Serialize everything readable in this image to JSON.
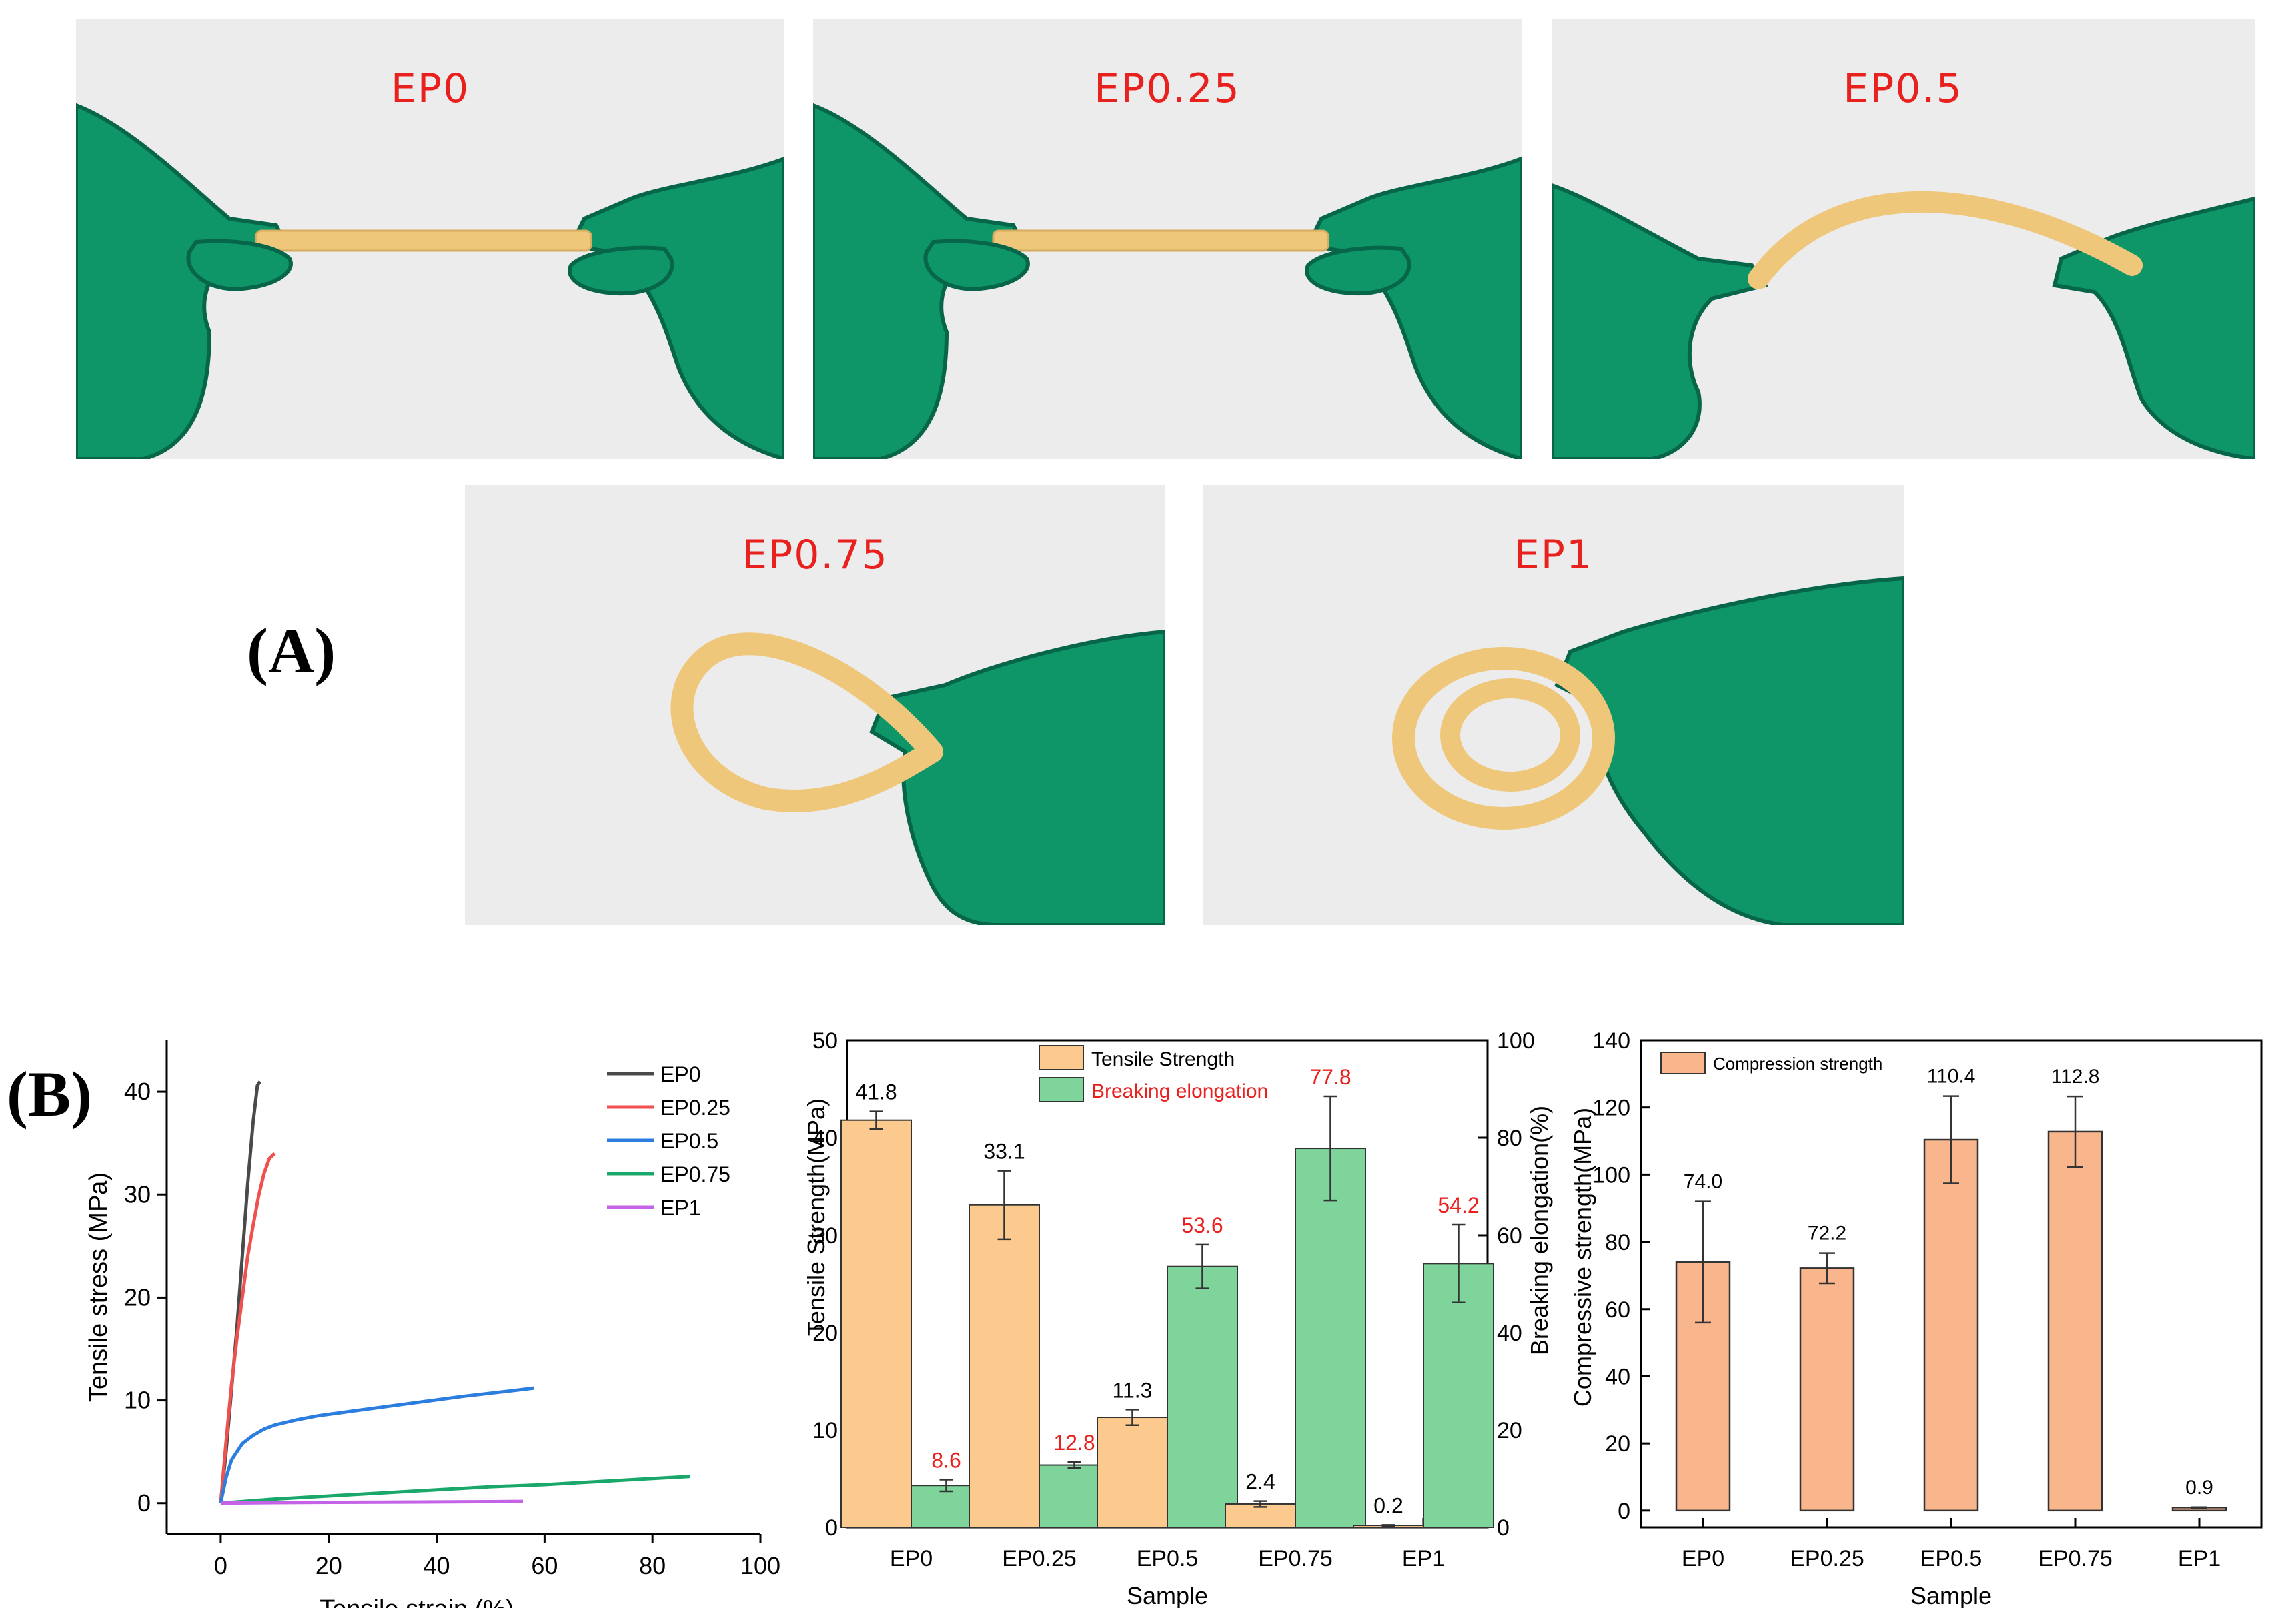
{
  "panel_a": {
    "letter": "(A)",
    "photos": [
      {
        "label": "EP0",
        "pose": "flat"
      },
      {
        "label": "EP0.25",
        "pose": "flat"
      },
      {
        "label": "EP0.5",
        "pose": "arch"
      },
      {
        "label": "EP0.75",
        "pose": "loop"
      },
      {
        "label": "EP1",
        "pose": "coil"
      }
    ]
  },
  "panel_b": {
    "letter": "(B)"
  },
  "colors": {
    "glove": "#0f9668",
    "glove_dark": "#07664a",
    "strip": "#efc77a",
    "background": "#ececec",
    "tensile_bar": "#fcca8e",
    "elong_bar": "#7ed49a",
    "compress_bar": "#f9b58c",
    "red_text": "#e8211e",
    "EP0": "#4a4a4a",
    "EP0.25": "#f0504e",
    "EP0.5": "#2c7de0",
    "EP0.75": "#1aa86a",
    "EP1": "#c563e6"
  },
  "chart_data": [
    {
      "type": "line",
      "xlabel": "Tensile strain (%)",
      "ylabel": "Tensile stress (MPa)",
      "xlim": [
        -10,
        100
      ],
      "ylim": [
        -3,
        45
      ],
      "xticks": [
        0,
        20,
        40,
        60,
        80,
        100
      ],
      "yticks": [
        0,
        10,
        20,
        30,
        40
      ],
      "legend": "top-right",
      "series": [
        {
          "name": "EP0",
          "color_key": "EP0",
          "x": [
            0,
            1,
            2,
            3,
            4,
            5,
            6,
            6.8,
            7.3
          ],
          "y": [
            0,
            5,
            11,
            17,
            24,
            31,
            37,
            40.6,
            41
          ]
        },
        {
          "name": "EP0.25",
          "color_key": "EP0.25",
          "x": [
            0,
            1,
            2,
            3,
            4,
            5,
            6,
            7,
            8,
            9,
            10
          ],
          "y": [
            0,
            6,
            11.5,
            16,
            20,
            24,
            27,
            29.8,
            32,
            33.5,
            34
          ]
        },
        {
          "name": "EP0.5",
          "color_key": "EP0.5",
          "x": [
            0,
            1,
            2,
            4,
            6,
            8,
            10,
            14,
            18,
            25,
            35,
            45,
            55,
            58
          ],
          "y": [
            0,
            2.5,
            4.2,
            5.8,
            6.6,
            7.2,
            7.6,
            8.1,
            8.5,
            9.0,
            9.7,
            10.4,
            11.0,
            11.2
          ]
        },
        {
          "name": "EP0.75",
          "color_key": "EP0.75",
          "x": [
            0,
            10,
            20,
            30,
            40,
            50,
            60,
            70,
            80,
            87
          ],
          "y": [
            0,
            0.4,
            0.7,
            1.0,
            1.3,
            1.6,
            1.8,
            2.1,
            2.4,
            2.6
          ]
        },
        {
          "name": "EP1",
          "color_key": "EP1",
          "x": [
            0,
            10,
            20,
            30,
            40,
            50,
            56
          ],
          "y": [
            0,
            0.05,
            0.08,
            0.1,
            0.12,
            0.15,
            0.17
          ]
        }
      ]
    },
    {
      "type": "bar",
      "categories": [
        "EP0",
        "EP0.25",
        "EP0.5",
        "EP0.75",
        "EP1"
      ],
      "xlabel": "Sample",
      "ylabel": "Tensile Strength(MPa)",
      "ylabel_right": "Breaking elongation(%)",
      "ylim": [
        0,
        50
      ],
      "ylim_right": [
        0,
        100
      ],
      "yticks": [
        0,
        10,
        20,
        30,
        40,
        50
      ],
      "yticks_right": [
        0,
        20,
        40,
        60,
        80,
        100
      ],
      "legend": "top-center",
      "series": [
        {
          "name": "Tensile Strength",
          "axis": "left",
          "color_key": "tensile_bar",
          "values": [
            41.8,
            33.1,
            11.3,
            2.4,
            0.2
          ],
          "errors": [
            0.9,
            3.5,
            0.8,
            0.3,
            0.05
          ],
          "labels": [
            "41.8",
            "33.1",
            "11.3",
            "2.4",
            "0.2"
          ]
        },
        {
          "name": "Breaking elongation",
          "axis": "right",
          "color_key": "elong_bar",
          "values": [
            8.6,
            12.8,
            53.6,
            77.8,
            54.2
          ],
          "errors": [
            1.2,
            0.6,
            4.5,
            10.7,
            8.0
          ],
          "labels": [
            "8.6",
            "12.8",
            "53.6",
            "77.8",
            "54.2"
          ]
        }
      ]
    },
    {
      "type": "bar",
      "categories": [
        "EP0",
        "EP0.25",
        "EP0.5",
        "EP0.75",
        "EP1"
      ],
      "xlabel": "Sample",
      "ylabel": "Compressive strength(MPa)",
      "ylim": [
        -5,
        140
      ],
      "yticks": [
        0,
        20,
        40,
        60,
        80,
        100,
        120,
        140
      ],
      "legend": "top-left",
      "series": [
        {
          "name": "Compression strength",
          "color_key": "compress_bar",
          "values": [
            74.0,
            72.2,
            110.4,
            112.8,
            0.9
          ],
          "errors": [
            18,
            4.5,
            13,
            10.5,
            0.1
          ],
          "labels": [
            "74.0",
            "72.2",
            "110.4",
            "112.8",
            "0.9"
          ]
        }
      ]
    }
  ]
}
